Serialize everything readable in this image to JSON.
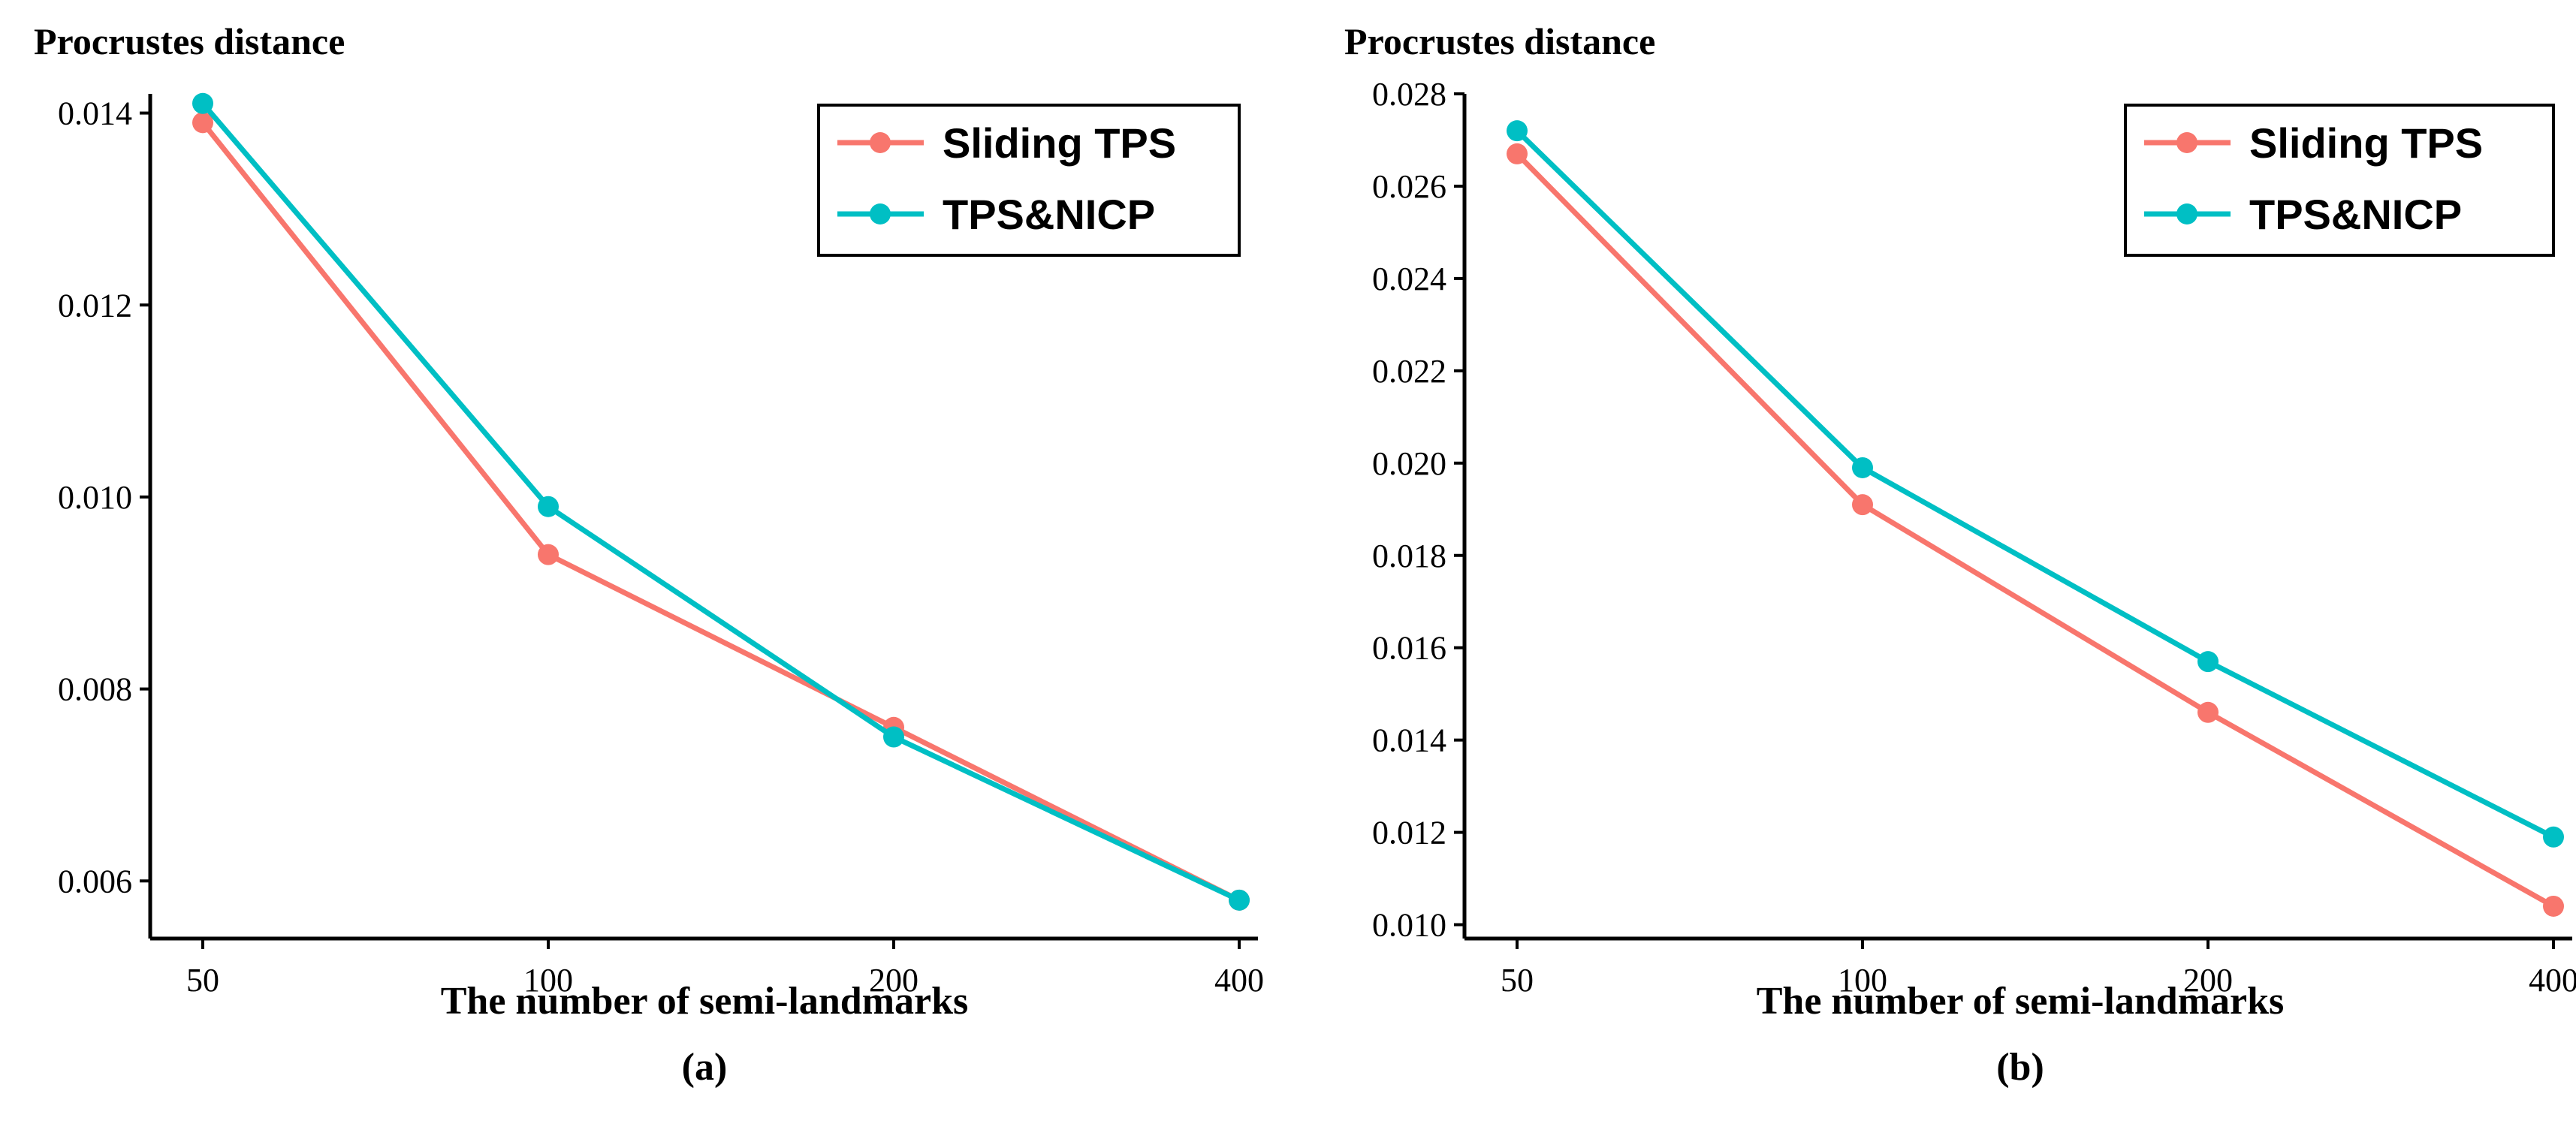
{
  "colors": {
    "sliding_tps": "#F8766D",
    "tps_nicp": "#00BFC4",
    "axis": "#000000",
    "background": "#ffffff"
  },
  "chart_data": [
    {
      "type": "line",
      "panel_label": "(a)",
      "title": "",
      "ylabel": "Procrustes distance",
      "xlabel": "The number of semi-landmarks",
      "categories": [
        "50",
        "100",
        "200",
        "400"
      ],
      "ylim": [
        0.0054,
        0.0142
      ],
      "yticks": [
        "0.006",
        "0.008",
        "0.010",
        "0.012",
        "0.014"
      ],
      "grid": false,
      "legend_position": "top-right",
      "series": [
        {
          "name": "Sliding TPS",
          "color": "#F8766D",
          "values": [
            0.0139,
            0.0094,
            0.0076,
            0.0058
          ]
        },
        {
          "name": "TPS&NICP",
          "color": "#00BFC4",
          "values": [
            0.0141,
            0.0099,
            0.0075,
            0.0058
          ]
        }
      ]
    },
    {
      "type": "line",
      "panel_label": "(b)",
      "title": "",
      "ylabel": "Procrustes distance",
      "xlabel": "The number of semi-landmarks",
      "categories": [
        "50",
        "100",
        "200",
        "400"
      ],
      "ylim": [
        0.0097,
        0.028
      ],
      "yticks": [
        "0.010",
        "0.012",
        "0.014",
        "0.016",
        "0.018",
        "0.020",
        "0.022",
        "0.024",
        "0.026",
        "0.028"
      ],
      "grid": false,
      "legend_position": "top-right",
      "series": [
        {
          "name": "Sliding TPS",
          "color": "#F8766D",
          "values": [
            0.0267,
            0.0191,
            0.0146,
            0.0104
          ]
        },
        {
          "name": "TPS&NICP",
          "color": "#00BFC4",
          "values": [
            0.0272,
            0.0199,
            0.0157,
            0.0119
          ]
        }
      ]
    }
  ]
}
